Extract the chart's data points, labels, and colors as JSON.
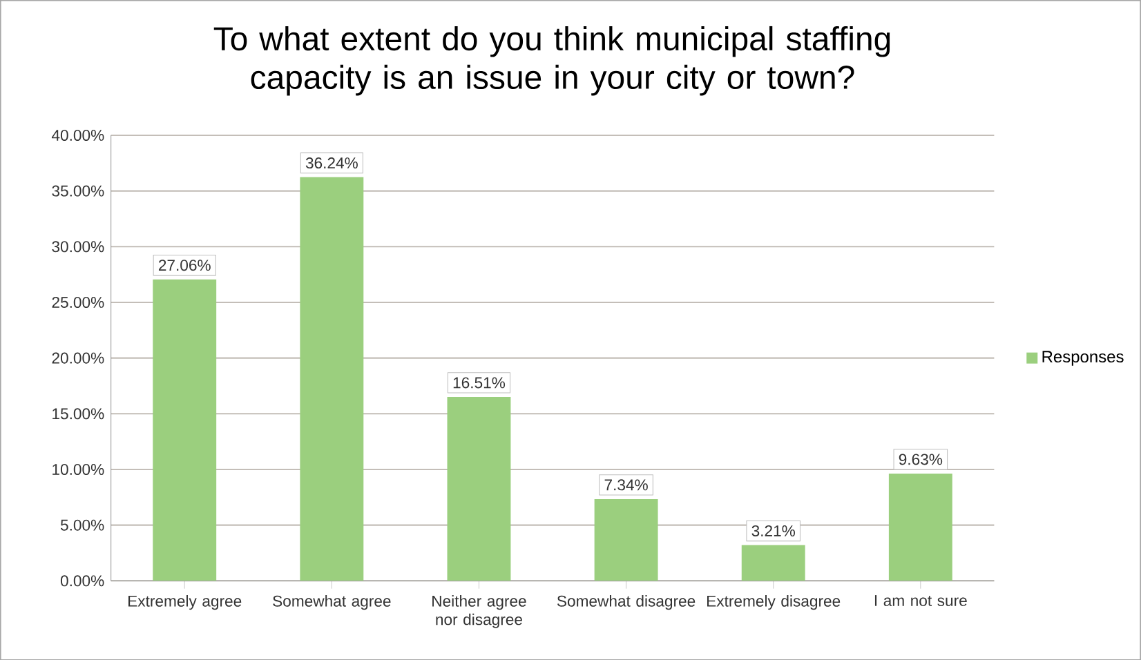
{
  "chart_data": {
    "type": "bar",
    "title": "To what extent do you think municipal staffing capacity is an issue in your city or town?",
    "categories": [
      "Extremely agree",
      "Somewhat agree",
      "Neither agree nor disagree",
      "Somewhat disagree",
      "Extremely disagree",
      "I am not sure"
    ],
    "series": [
      {
        "name": "Responses",
        "color": "#9bcf7e",
        "values": [
          27.06,
          36.24,
          16.51,
          7.34,
          3.21,
          9.63
        ]
      }
    ],
    "value_labels": [
      "27.06%",
      "36.24%",
      "16.51%",
      "7.34%",
      "3.21%",
      "9.63%"
    ],
    "ylim": [
      0,
      40
    ],
    "yticks": [
      {
        "value": 0,
        "label": "0.00%"
      },
      {
        "value": 5,
        "label": "5.00%"
      },
      {
        "value": 10,
        "label": "10.00%"
      },
      {
        "value": 15,
        "label": "15.00%"
      },
      {
        "value": 20,
        "label": "20.00%"
      },
      {
        "value": 25,
        "label": "25.00%"
      },
      {
        "value": 30,
        "label": "30.00%"
      },
      {
        "value": 35,
        "label": "35.00%"
      },
      {
        "value": 40,
        "label": "40.00%"
      }
    ],
    "grid": "y",
    "legend": "right"
  }
}
